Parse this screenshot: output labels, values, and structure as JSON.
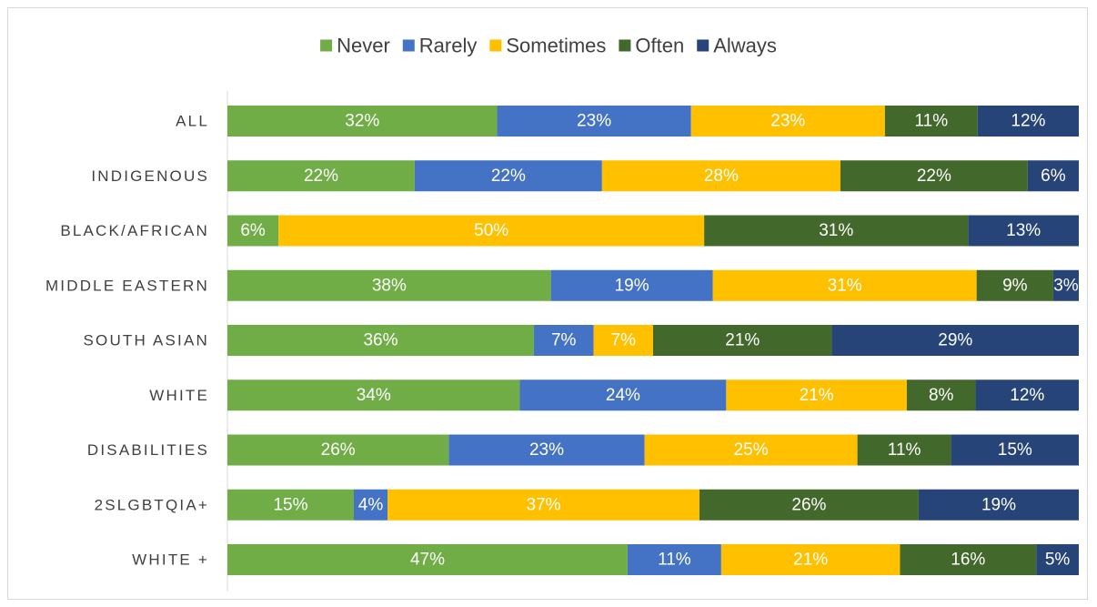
{
  "chart_data": {
    "type": "bar",
    "orientation": "horizontal",
    "stacked": true,
    "normalized": true,
    "title": "",
    "xlabel": "",
    "ylabel": "",
    "xlim": [
      0,
      100
    ],
    "grid": false,
    "legend_position": "top",
    "categories": [
      "ALL",
      "INDIGENOUS",
      "BLACK/AFRICAN",
      "MIDDLE EASTERN",
      "SOUTH ASIAN",
      "WHITE",
      "DISABILITIES",
      "2SLGBTQIA+",
      "WHITE +"
    ],
    "series": [
      {
        "name": "Never",
        "color": "#70ad47",
        "text_color": "#ffffff",
        "values": [
          32,
          22,
          6,
          38,
          36,
          34,
          26,
          15,
          47
        ],
        "labels": [
          "32%",
          "22%",
          "6%",
          "38%",
          "36%",
          "34%",
          "26%",
          "15%",
          "47%"
        ]
      },
      {
        "name": "Rarely",
        "color": "#4472c4",
        "text_color": "#ffffff",
        "values": [
          23,
          22,
          0,
          19,
          7,
          24,
          23,
          4,
          11
        ],
        "labels": [
          "23%",
          "22%",
          "",
          "19%",
          "7%",
          "24%",
          "23%",
          "4%",
          "11%"
        ]
      },
      {
        "name": "Sometimes",
        "color": "#ffc000",
        "text_color": "#ffffff",
        "values": [
          23,
          28,
          50,
          31,
          7,
          21,
          25,
          37,
          21
        ],
        "labels": [
          "23%",
          "28%",
          "50%",
          "31%",
          "7%",
          "21%",
          "25%",
          "37%",
          "21%"
        ]
      },
      {
        "name": "Often",
        "color": "#43682b",
        "text_color": "#ffffff",
        "values": [
          11,
          22,
          31,
          9,
          21,
          8,
          11,
          26,
          16
        ],
        "labels": [
          "11%",
          "22%",
          "31%",
          "9%",
          "21%",
          "8%",
          "11%",
          "26%",
          "16%"
        ]
      },
      {
        "name": "Always",
        "color": "#264478",
        "text_color": "#ffffff",
        "values": [
          12,
          6,
          13,
          3,
          29,
          12,
          15,
          19,
          5
        ],
        "labels": [
          "12%",
          "6%",
          "13%",
          "3%",
          "29%",
          "12%",
          "15%",
          "19%",
          "5%"
        ]
      }
    ]
  }
}
